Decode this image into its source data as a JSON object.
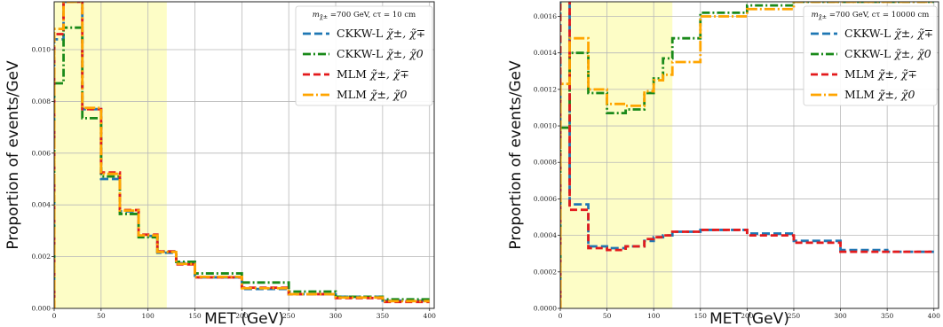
{
  "chart_data": [
    {
      "type": "line",
      "title": "",
      "xlabel": "MET (GeV)",
      "ylabel": "Proportion of events/GeV",
      "xlim": [
        0,
        405
      ],
      "ylim": [
        0,
        0.01185
      ],
      "xticks": [
        "0",
        "50",
        "100",
        "150",
        "200",
        "250",
        "300",
        "350",
        "400"
      ],
      "yticks": [
        "0.000",
        "0.002",
        "0.004",
        "0.006",
        "0.008",
        "0.010"
      ],
      "ytick_values": [
        0,
        0.002,
        0.004,
        0.006,
        0.008,
        0.01
      ],
      "grid": true,
      "shaded_region": [
        0,
        120
      ],
      "shade_color": "#fdfdc6",
      "legend": {
        "title_main": "m",
        "title_sub": "χ̃±",
        "title_rest": " =700 GeV, cτ = 10 cm",
        "position": "top-right"
      },
      "bin_edges": [
        0,
        10,
        30,
        50,
        70,
        90,
        110,
        130,
        150,
        200,
        250,
        300,
        350,
        400
      ],
      "series": [
        {
          "name": "CKKW-L χ̃±, χ̃∓",
          "label_main": "CKKW-L ",
          "label_sym": "χ̃±, χ̃∓",
          "color": "#1f77b4",
          "dash": "9,4",
          "width": 2.8,
          "values": [
            0.0104,
            0.01185,
            0.0077,
            0.005,
            0.00375,
            0.0028,
            0.00215,
            0.00175,
            0.0012,
            0.00075,
            0.00055,
            0.00045,
            0.0003
          ]
        },
        {
          "name": "CKKW-L χ̃±, χ̃0",
          "label_main": "CKKW-L ",
          "label_sym": "χ̃±, χ̃0",
          "color": "#1a8a1a",
          "dash": "9,3,2,3",
          "width": 2.8,
          "values": [
            0.0087,
            0.01085,
            0.00735,
            0.0051,
            0.00365,
            0.00275,
            0.0022,
            0.0018,
            0.00135,
            0.001,
            0.00065,
            0.00045,
            0.00035
          ]
        },
        {
          "name": "MLM χ̃±, χ̃∓",
          "label_main": "MLM ",
          "label_sym": "χ̃±, χ̃∓",
          "color": "#e31a1c",
          "dash": "8,4",
          "width": 2.8,
          "values": [
            0.0106,
            0.01185,
            0.0077,
            0.00525,
            0.0038,
            0.00285,
            0.0022,
            0.0017,
            0.0012,
            0.0008,
            0.00055,
            0.0004,
            0.00025
          ]
        },
        {
          "name": "MLM χ̃±, χ̃0",
          "label_main": "MLM ",
          "label_sym": "χ̃±, χ̃0",
          "color": "#ffa500",
          "dash": "12,3,2,3",
          "width": 2.8,
          "values": [
            0.0108,
            0.01185,
            0.00775,
            0.0052,
            0.00378,
            0.00282,
            0.00218,
            0.00172,
            0.00122,
            0.00078,
            0.00055,
            0.00042,
            0.00028
          ]
        }
      ]
    },
    {
      "type": "line",
      "title": "",
      "xlabel": "MET (GeV)",
      "ylabel": "Proportion of events/GeV",
      "xlim": [
        0,
        405
      ],
      "ylim": [
        0,
        0.00168
      ],
      "xticks": [
        "0",
        "50",
        "100",
        "150",
        "200",
        "250",
        "300",
        "350",
        "400"
      ],
      "yticks": [
        "0.0000",
        "0.0002",
        "0.0004",
        "0.0006",
        "0.0008",
        "0.0010",
        "0.0012",
        "0.0014",
        "0.0016"
      ],
      "ytick_values": [
        0,
        0.0002,
        0.0004,
        0.0006,
        0.0008,
        0.001,
        0.0012,
        0.0014,
        0.0016
      ],
      "grid": true,
      "shaded_region": [
        0,
        120
      ],
      "shade_color": "#fdfdc6",
      "legend": {
        "title_main": "m",
        "title_sub": "χ̃±",
        "title_rest": " =700 GeV, cτ = 10000 cm",
        "position": "top-right"
      },
      "bin_edges": [
        0,
        10,
        30,
        50,
        70,
        90,
        100,
        110,
        120,
        150,
        200,
        250,
        300,
        350,
        400
      ],
      "series": [
        {
          "name": "CKKW-L χ̃±, χ̃∓",
          "label_main": "CKKW-L ",
          "label_sym": "χ̃±, χ̃∓",
          "color": "#1f77b4",
          "dash": "9,4",
          "width": 2.8,
          "values": [
            0.0017,
            0.00057,
            0.00034,
            0.00033,
            0.00034,
            0.00037,
            0.00039,
            0.0004,
            0.00042,
            0.00043,
            0.00041,
            0.00037,
            0.00032,
            0.00031
          ]
        },
        {
          "name": "CKKW-L χ̃±, χ̃0",
          "label_main": "CKKW-L ",
          "label_sym": "χ̃±, χ̃0",
          "color": "#1a8a1a",
          "dash": "9,3,2,3",
          "width": 2.8,
          "values": [
            0.00099,
            0.0014,
            0.00118,
            0.00107,
            0.00109,
            0.00118,
            0.00126,
            0.00137,
            0.00148,
            0.00162,
            0.00166,
            0.00168,
            0.00168,
            0.00168
          ]
        },
        {
          "name": "MLM χ̃±, χ̃∓",
          "label_main": "MLM ",
          "label_sym": "χ̃±, χ̃∓",
          "color": "#e31a1c",
          "dash": "8,4",
          "width": 2.8,
          "values": [
            0.0017,
            0.00054,
            0.00033,
            0.00032,
            0.00034,
            0.00038,
            0.00039,
            0.0004,
            0.00042,
            0.00043,
            0.0004,
            0.00036,
            0.00031,
            0.00031
          ]
        },
        {
          "name": "MLM χ̃±, χ̃0",
          "label_main": "MLM ",
          "label_sym": "χ̃±, χ̃0",
          "color": "#ffa500",
          "dash": "12,3,2,3",
          "width": 2.8,
          "values": [
            0.00123,
            0.00148,
            0.0012,
            0.00112,
            0.00111,
            0.00119,
            0.00125,
            0.00128,
            0.00135,
            0.0016,
            0.00164,
            0.00168,
            0.00168,
            0.00168
          ]
        }
      ]
    }
  ]
}
